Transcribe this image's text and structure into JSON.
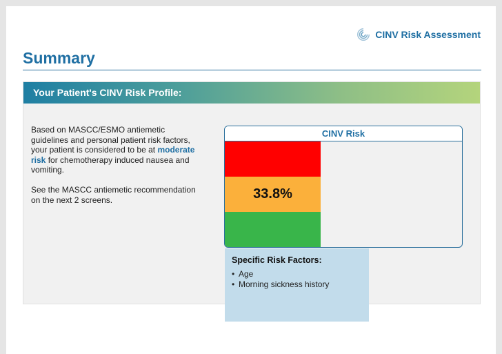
{
  "app": {
    "brand_name": "CINV Risk Assessment",
    "brand_icon": "swirl-logo-icon"
  },
  "page": {
    "title": "Summary"
  },
  "profile": {
    "header": "Your Patient's CINV Risk Profile:",
    "intro_before": "Based on MASCC/ESMO antiemetic guidelines and personal patient risk factors, your patient is considered to be at ",
    "intro_highlight": "moderate risk",
    "intro_after": " for chemotherapy induced nausea and vomiting.",
    "recommendation": "See the MASCC antiemetic recommendation on the next 2 screens."
  },
  "risk_card": {
    "title": "CINV Risk",
    "score": "33.8%",
    "level": "moderate",
    "colors": {
      "high": "#ff0000",
      "moderate": "#fbb03b",
      "low": "#39b54a"
    }
  },
  "factors": {
    "title": "Specific Risk Factors:",
    "items": [
      "Age",
      "Morning sickness history"
    ]
  }
}
